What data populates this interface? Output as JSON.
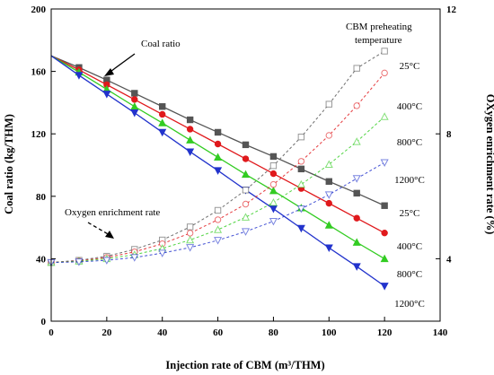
{
  "chart_data": {
    "type": "line",
    "xlabel": "Injection rate of CBM (m³/THM)",
    "ylabel_left": "Coal ratio (kg/THM)",
    "ylabel_right": "OXygen enrichment rate (%)",
    "xlim": [
      0,
      140
    ],
    "ylim_left": [
      0,
      200
    ],
    "ylim_right": [
      2,
      12
    ],
    "xticks": [
      "0",
      "20",
      "40",
      "60",
      "80",
      "100",
      "120",
      "140"
    ],
    "yticks_left": [
      "0",
      "40",
      "80",
      "120",
      "160",
      "200"
    ],
    "yticks_right": [
      "4",
      "8",
      "12"
    ],
    "x": [
      0,
      10,
      20,
      30,
      40,
      50,
      60,
      70,
      80,
      90,
      100,
      110,
      120
    ],
    "coal_ratio_series": [
      {
        "temperature": "25°C",
        "color": "#555555",
        "marker": "square",
        "values": [
          170,
          162.5,
          154.5,
          146,
          137.5,
          129,
          121,
          113,
          105.5,
          97.5,
          89.5,
          82,
          74
        ]
      },
      {
        "temperature": "400°C",
        "color": "#e0191c",
        "marker": "circle",
        "values": [
          170,
          161,
          151.5,
          142,
          132.5,
          123,
          113.5,
          104,
          94.5,
          85,
          75.5,
          66,
          56.5
        ]
      },
      {
        "temperature": "800°C",
        "color": "#33cc22",
        "marker": "triangle-up",
        "values": [
          170,
          159.5,
          148.5,
          137.5,
          127,
          116,
          105,
          94,
          83.5,
          72.5,
          61.5,
          50.5,
          40
        ]
      },
      {
        "temperature": "1200°C",
        "color": "#2233cc",
        "marker": "triangle-down",
        "values": [
          170,
          157.5,
          145.5,
          133.5,
          121,
          108.5,
          96.5,
          84,
          72,
          59.5,
          47,
          35,
          22.5
        ]
      }
    ],
    "oxygen_series": [
      {
        "temperature": "25°C",
        "color": "#555555",
        "marker": "square",
        "values": [
          3.88,
          3.95,
          4.08,
          4.3,
          4.6,
          5.02,
          5.55,
          6.2,
          6.98,
          7.9,
          8.95,
          10.1,
          10.65
        ]
      },
      {
        "temperature": "400°C",
        "color": "#e0191c",
        "marker": "circle",
        "values": [
          3.88,
          3.93,
          4.04,
          4.22,
          4.48,
          4.82,
          5.25,
          5.75,
          6.38,
          7.12,
          7.95,
          8.9,
          9.95
        ]
      },
      {
        "temperature": "800°C",
        "color": "#33cc22",
        "marker": "triangle-up",
        "values": [
          3.88,
          3.92,
          4.0,
          4.13,
          4.33,
          4.6,
          4.93,
          5.33,
          5.8,
          6.38,
          7.02,
          7.75,
          8.55
        ]
      },
      {
        "temperature": "1200°C",
        "color": "#2233cc",
        "marker": "triangle-down",
        "values": [
          3.88,
          3.9,
          3.95,
          4.04,
          4.18,
          4.36,
          4.59,
          4.87,
          5.2,
          5.6,
          6.05,
          6.57,
          7.08
        ]
      }
    ]
  },
  "annotations": {
    "coal_ratio": "Coal ratio",
    "oxygen_rate": "Oxygen enrichment rate",
    "legend_title_line1": "CBM preheating",
    "legend_title_line2": "temperature"
  }
}
